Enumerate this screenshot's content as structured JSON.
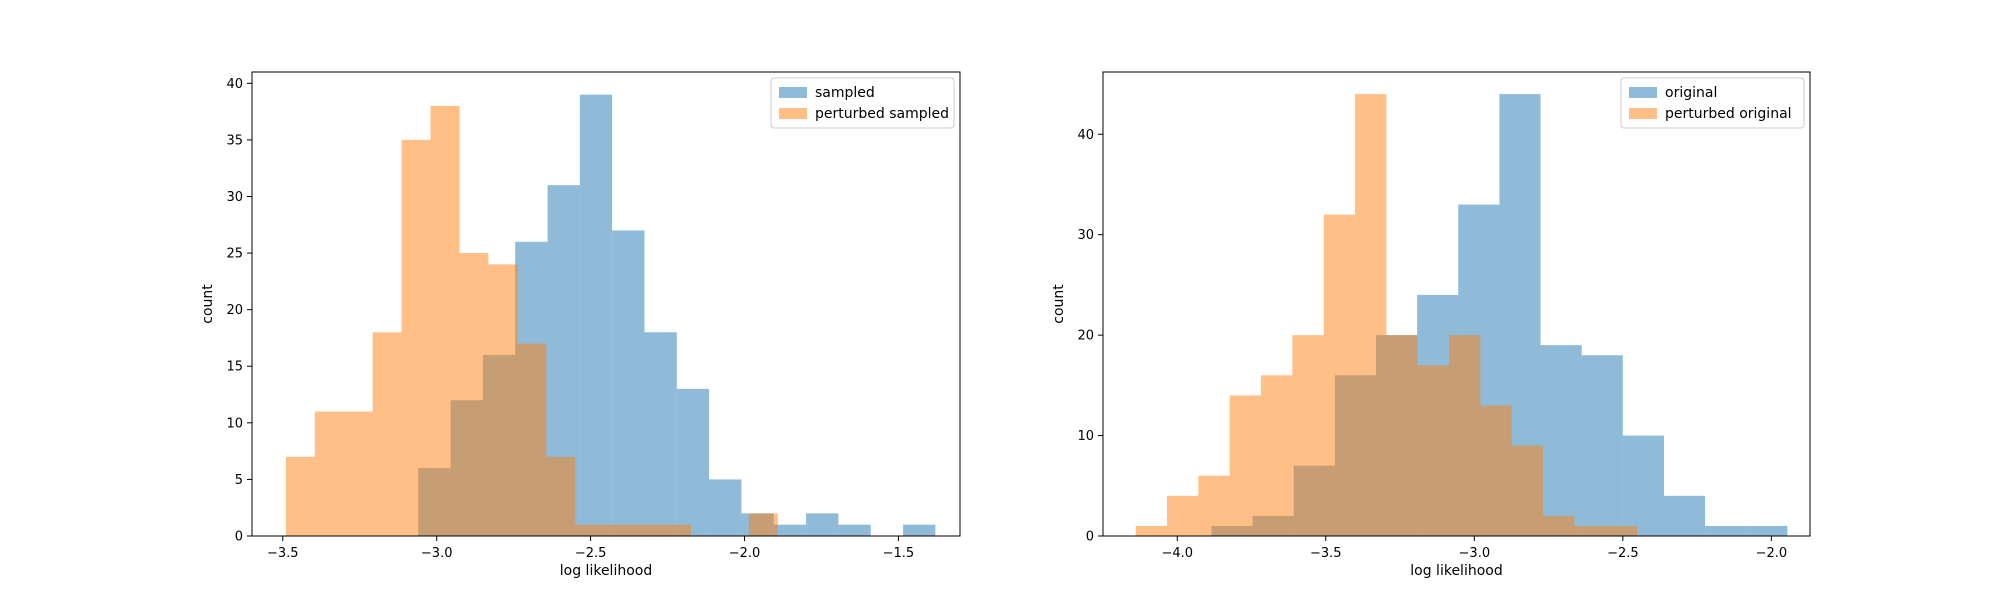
{
  "chart_data": [
    {
      "type": "bar",
      "histogram": true,
      "xlabel": "log likelihood",
      "ylabel": "count",
      "xlim": [
        -3.6,
        -1.3
      ],
      "ylim": [
        0,
        41
      ],
      "xticks": [
        -3.5,
        -3.0,
        -2.5,
        -2.0,
        -1.5
      ],
      "xtick_labels": [
        "−3.5",
        "−3.0",
        "−2.5",
        "−2.0",
        "−1.5"
      ],
      "yticks": [
        0,
        5,
        10,
        15,
        20,
        25,
        30,
        35,
        40
      ],
      "ytick_labels": [
        "0",
        "5",
        "10",
        "15",
        "20",
        "25",
        "30",
        "35",
        "40"
      ],
      "legend": "top-right",
      "series": [
        {
          "name": "sampled",
          "color": "#1f77b4",
          "bins": [
            -3.06,
            -2.955,
            -2.85,
            -2.745,
            -2.64,
            -2.535,
            -2.43,
            -2.325,
            -2.22,
            -2.115,
            -2.01,
            -1.905,
            -1.8,
            -1.695,
            -1.59,
            -1.485,
            -1.38
          ],
          "counts": [
            6,
            12,
            16,
            26,
            31,
            39,
            27,
            18,
            13,
            5,
            2,
            1,
            2,
            1,
            0,
            1
          ]
        },
        {
          "name": "perturbed sampled",
          "color": "#ff7f0e",
          "bins": [
            -3.49,
            -3.396,
            -3.302,
            -3.208,
            -3.114,
            -3.02,
            -2.926,
            -2.832,
            -2.738,
            -2.644,
            -2.55,
            -2.456,
            -2.362,
            -2.268,
            -2.174,
            -2.08,
            -1.986,
            -1.892
          ],
          "counts": [
            7,
            11,
            11,
            18,
            35,
            38,
            25,
            24,
            17,
            7,
            1,
            1,
            1,
            1,
            0,
            0,
            2
          ]
        }
      ]
    },
    {
      "type": "bar",
      "histogram": true,
      "xlabel": "log likelihood",
      "ylabel": "count",
      "xlim": [
        -4.25,
        -1.87
      ],
      "ylim": [
        0,
        46.2
      ],
      "xticks": [
        -4.0,
        -3.5,
        -3.0,
        -2.5,
        -2.0
      ],
      "xtick_labels": [
        "−4.0",
        "−3.5",
        "−3.0",
        "−2.5",
        "−2.0"
      ],
      "yticks": [
        0,
        10,
        20,
        30,
        40
      ],
      "ytick_labels": [
        "0",
        "10",
        "20",
        "30",
        "40"
      ],
      "legend": "top-right",
      "series": [
        {
          "name": "original",
          "color": "#1f77b4",
          "bins": [
            -3.885,
            -3.7465,
            -3.608,
            -3.4695,
            -3.331,
            -3.1925,
            -3.054,
            -2.9155,
            -2.777,
            -2.6385,
            -2.5,
            -2.3615,
            -2.223,
            -2.0845,
            -1.946
          ],
          "counts": [
            1,
            2,
            7,
            16,
            20,
            24,
            33,
            44,
            19,
            18,
            10,
            4,
            1,
            1
          ]
        },
        {
          "name": "perturbed original",
          "color": "#ff7f0e",
          "bins": [
            -4.14,
            -4.0345,
            -3.929,
            -3.8235,
            -3.718,
            -3.6125,
            -3.507,
            -3.4015,
            -3.296,
            -3.1905,
            -3.085,
            -2.9795,
            -2.874,
            -2.7685,
            -2.663,
            -2.5575,
            -2.452
          ],
          "counts": [
            1,
            4,
            6,
            14,
            16,
            20,
            32,
            44,
            20,
            17,
            20,
            13,
            9,
            2,
            1,
            1
          ]
        }
      ]
    }
  ]
}
